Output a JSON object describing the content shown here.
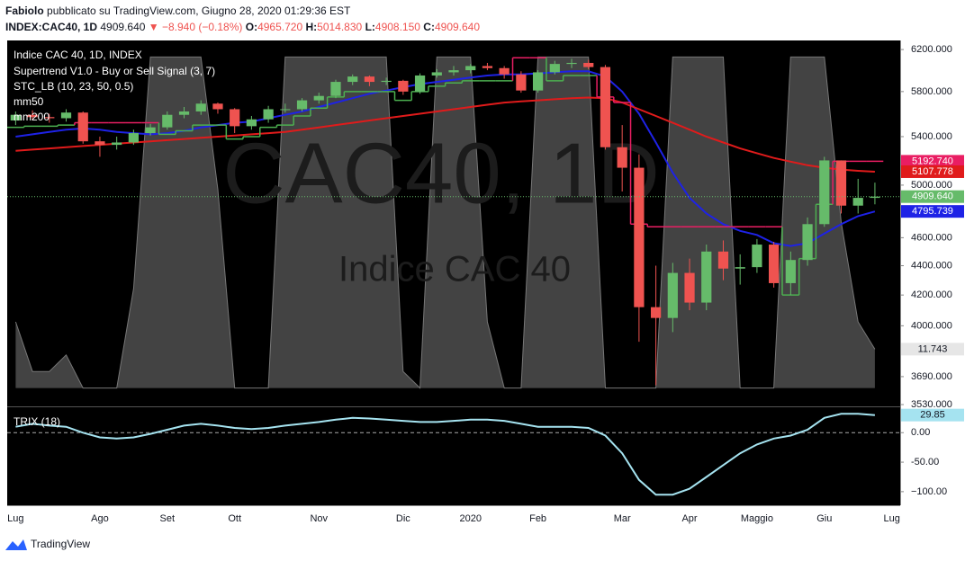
{
  "header": {
    "author": "Fabiolo",
    "published": "pubblicato su TradingView.com, Giugno 28, 2020 01:29:36 EST",
    "symbol": "INDEX:CAC40, 1D",
    "last": "4909.640",
    "change": "▼ −8.940 (−0.18%)",
    "ohlc": [
      {
        "label": "O:",
        "value": "4965.720"
      },
      {
        "label": "H:",
        "value": "5014.830"
      },
      {
        "label": "L:",
        "value": "4908.150"
      },
      {
        "label": "C:",
        "value": "4909.640"
      }
    ]
  },
  "footer": "TradingView",
  "chart_data": [
    {
      "type": "candlestick",
      "name": "Indice CAC 40, 1D, INDEX",
      "watermark": "CAC40, 1D",
      "watermark_sub": "Indice CAC 40",
      "categories": [
        "Lug",
        null,
        null,
        null,
        null,
        "Ago",
        null,
        null,
        null,
        "Set",
        null,
        null,
        null,
        "Ott",
        null,
        null,
        null,
        null,
        "Nov",
        null,
        null,
        null,
        null,
        "Dic",
        null,
        null,
        null,
        "2020",
        null,
        null,
        null,
        "Feb",
        null,
        null,
        null,
        null,
        "Mar",
        null,
        null,
        null,
        "Apr",
        null,
        null,
        null,
        "Maggio",
        null,
        null,
        null,
        "Giu",
        null,
        null,
        null,
        "Lug"
      ],
      "open": [
        5540,
        5590,
        5570,
        5560,
        5610,
        5360,
        5330,
        5350,
        5430,
        5480,
        5590,
        5620,
        5690,
        5640,
        5490,
        5550,
        5640,
        5640,
        5720,
        5760,
        5890,
        5940,
        5890,
        5900,
        5800,
        5950,
        5980,
        6000,
        6040,
        6020,
        5960,
        5810,
        5980,
        6060,
        6070,
        6030,
        5310,
        5140,
        4120,
        4050,
        4350,
        4150,
        4500,
        4380,
        4390,
        4550,
        4280,
        4440,
        4700,
        5200,
        4840,
        4900,
        null
      ],
      "high": [
        5620,
        5630,
        5600,
        5640,
        5620,
        5400,
        5400,
        5460,
        5510,
        5620,
        5660,
        5720,
        5700,
        5650,
        5580,
        5670,
        5690,
        5740,
        5790,
        5910,
        5960,
        5950,
        5930,
        5910,
        5970,
        6010,
        6040,
        6060,
        6070,
        6040,
        5990,
        6000,
        6090,
        6110,
        6100,
        6050,
        5500,
        5250,
        4400,
        4420,
        4450,
        4550,
        4580,
        4480,
        4590,
        4570,
        4500,
        4750,
        5230,
        5200,
        5050,
        5020,
        null
      ],
      "low": [
        5500,
        5540,
        5520,
        5530,
        5340,
        5230,
        5290,
        5330,
        5410,
        5460,
        5560,
        5590,
        5600,
        5430,
        5460,
        5520,
        5610,
        5620,
        5690,
        5740,
        5860,
        5850,
        5860,
        5770,
        5780,
        5930,
        5950,
        5970,
        6000,
        5920,
        5790,
        5790,
        5960,
        6020,
        6010,
        5290,
        4950,
        3900,
        3640,
        3960,
        4100,
        4100,
        4300,
        4270,
        4350,
        4250,
        4200,
        4400,
        4680,
        4780,
        4780,
        4850,
        null
      ],
      "close": [
        5590,
        5570,
        5560,
        5610,
        5360,
        5330,
        5350,
        5430,
        5480,
        5590,
        5620,
        5690,
        5640,
        5490,
        5550,
        5640,
        5640,
        5720,
        5760,
        5890,
        5940,
        5890,
        5900,
        5800,
        5950,
        5980,
        6000,
        6040,
        6020,
        5960,
        5810,
        5980,
        6060,
        6070,
        6030,
        5310,
        5140,
        4120,
        4050,
        4350,
        4150,
        4500,
        4380,
        4390,
        4550,
        4280,
        4440,
        4700,
        5200,
        4840,
        4900,
        4909.64,
        null
      ],
      "close_label": "4909.640",
      "color_up": "#66bb6a",
      "color_down": "#ef5350",
      "log_scale": true,
      "ylim": [
        3530,
        6290
      ],
      "yticks": [
        {
          "value": 6200,
          "label": "6200.000"
        },
        {
          "value": 5800,
          "label": "5800.000"
        },
        {
          "value": 5400,
          "label": "5400.000"
        },
        {
          "value": 5000,
          "label": "5000.000"
        },
        {
          "value": 4600,
          "label": "4600.000"
        },
        {
          "value": 4400,
          "label": "4400.000"
        },
        {
          "value": 4200,
          "label": "4200.000"
        },
        {
          "value": 4000,
          "label": "4000.000"
        },
        {
          "value": 3690,
          "label": "3690.000"
        },
        {
          "value": 3530,
          "label": "3530.000"
        }
      ],
      "y2lim": [
        -5,
        105
      ],
      "series": [
        {
          "name": "Supertrend V1.0 - Buy or Sell Signal (3, 7)",
          "colors": [
            "#4caf50",
            "#e91e63"
          ],
          "last_label": "5192.740",
          "values": [
            5480,
            5490,
            5490,
            5500,
            5520,
            5520,
            5520,
            5520,
            5520,
            5420,
            5450,
            5500,
            5500,
            5380,
            5400,
            5480,
            5500,
            5580,
            5650,
            5750,
            5800,
            5800,
            5800,
            5720,
            5800,
            5850,
            5880,
            5900,
            5900,
            5900,
            6120,
            6120,
            5900,
            5950,
            5950,
            5750,
            5700,
            4700,
            4680,
            4680,
            4680,
            4680,
            4680,
            4680,
            4680,
            4680,
            4200,
            4450,
            4850,
            5192.74,
            5192.74,
            5192.74,
            null
          ]
        },
        {
          "name": "STC_LB (10, 23, 50, 0.5)",
          "color": "#5a5a5a",
          "axis": "y2",
          "last_label": "11.743",
          "values": [
            20,
            5,
            5,
            10,
            0,
            0,
            0,
            30,
            100,
            100,
            100,
            100,
            60,
            0,
            0,
            0,
            100,
            100,
            100,
            100,
            100,
            100,
            100,
            5,
            0,
            100,
            100,
            100,
            20,
            0,
            0,
            100,
            100,
            100,
            100,
            0,
            0,
            0,
            0,
            100,
            100,
            100,
            100,
            0,
            0,
            0,
            100,
            100,
            100,
            50,
            20,
            11.743,
            null
          ]
        },
        {
          "name": "mm50",
          "color": "#1e22e6",
          "last_label": "4795.739",
          "values": [
            5400,
            5420,
            5440,
            5460,
            5470,
            5460,
            5440,
            5430,
            5420,
            5430,
            5450,
            5480,
            5500,
            5520,
            5530,
            5560,
            5590,
            5620,
            5660,
            5700,
            5740,
            5780,
            5810,
            5840,
            5870,
            5890,
            5910,
            5930,
            5950,
            5960,
            5960,
            5970,
            5980,
            5990,
            5990,
            5940,
            5800,
            5600,
            5350,
            5100,
            4900,
            4780,
            4700,
            4650,
            4620,
            4560,
            4540,
            4560,
            4630,
            4700,
            4760,
            4795.739,
            null
          ]
        },
        {
          "name": "mm200",
          "color": "#e01b1b",
          "last_label": "5107.778",
          "values": [
            5280,
            5290,
            5300,
            5310,
            5320,
            5330,
            5340,
            5350,
            5360,
            5370,
            5380,
            5390,
            5400,
            5410,
            5420,
            5430,
            5440,
            5460,
            5480,
            5500,
            5520,
            5540,
            5560,
            5580,
            5600,
            5620,
            5640,
            5660,
            5680,
            5700,
            5710,
            5720,
            5730,
            5740,
            5745,
            5740,
            5700,
            5640,
            5580,
            5520,
            5460,
            5400,
            5350,
            5300,
            5260,
            5220,
            5190,
            5160,
            5140,
            5125,
            5115,
            5107.778,
            null
          ]
        }
      ]
    },
    {
      "type": "line",
      "ylim": [
        -120,
        40
      ],
      "yticks": [
        {
          "value": 0,
          "label": "0.00"
        },
        {
          "value": -50,
          "label": "-50.00"
        },
        {
          "value": -100,
          "label": "−100.00"
        }
      ],
      "zero_line": true,
      "series": [
        {
          "name": "TRIX (18)",
          "color": "#a5e3f0",
          "last_label": "29.85",
          "values": [
            10,
            15,
            12,
            10,
            0,
            -8,
            -10,
            -8,
            -2,
            5,
            12,
            15,
            12,
            8,
            6,
            8,
            12,
            15,
            18,
            22,
            25,
            24,
            22,
            20,
            18,
            18,
            20,
            22,
            22,
            20,
            15,
            10,
            10,
            10,
            8,
            -5,
            -35,
            -80,
            -105,
            -105,
            -95,
            -75,
            -55,
            -35,
            -20,
            -10,
            -5,
            5,
            25,
            32,
            32,
            29.85,
            null
          ]
        }
      ]
    }
  ]
}
